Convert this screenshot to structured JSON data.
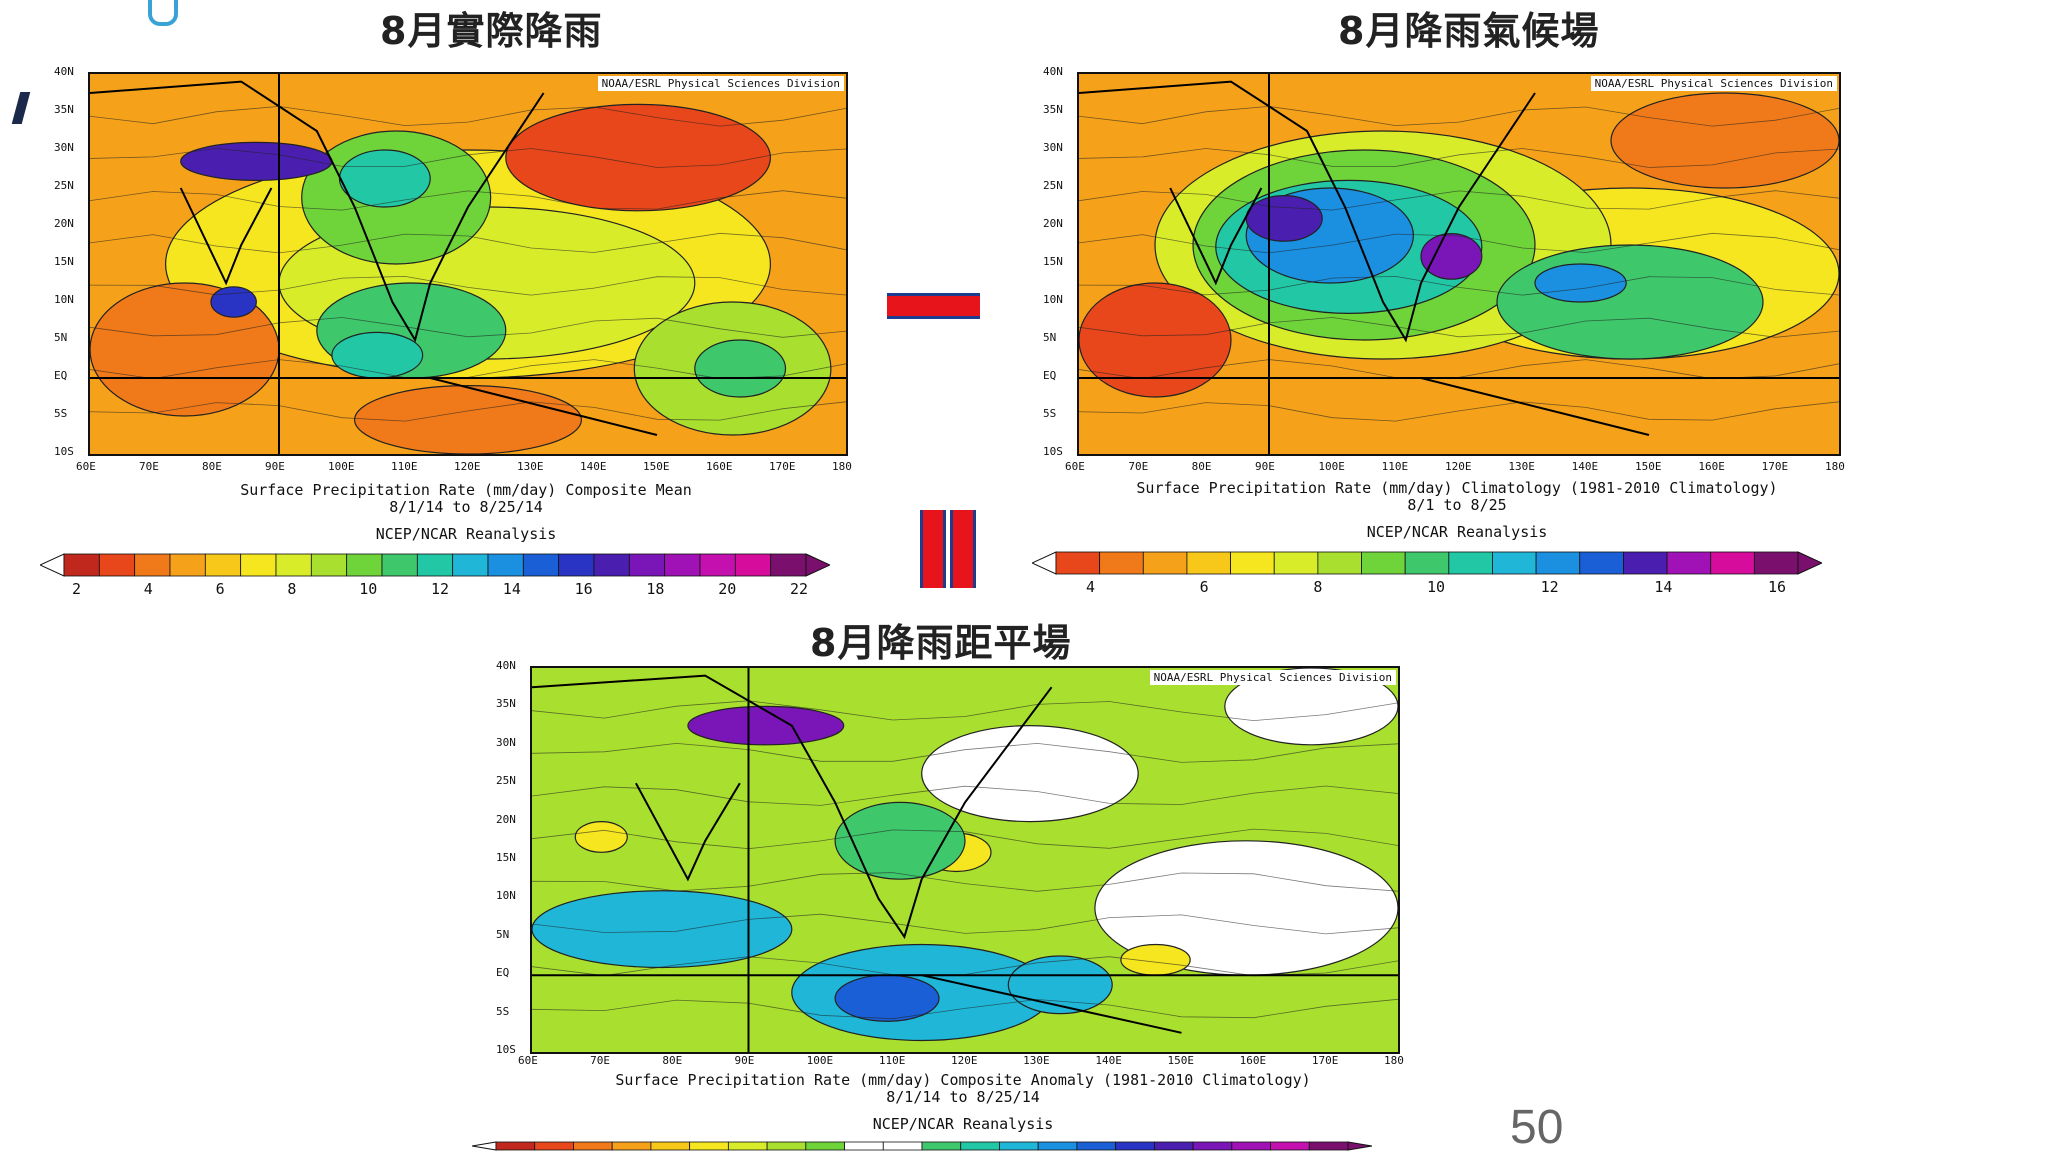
{
  "panels": [
    {
      "title": "8月實際降雨",
      "credit": "NOAA/ESRL Physical Sciences Division",
      "caption_line1": "Surface Precipitation Rate (mm/day) Composite Mean",
      "caption_line2": "8/1/14  to 8/25/14",
      "caption_line3": "NCEP/NCAR Reanalysis",
      "colorbar_labels": [
        "2",
        "4",
        "6",
        "8",
        "10",
        "12",
        "14",
        "16",
        "18",
        "20",
        "22"
      ],
      "colorbar_colors": [
        "#c0281d",
        "#e8471b",
        "#f07a1a",
        "#f5a21a",
        "#f7c81a",
        "#f5e620",
        "#d8ec2a",
        "#a9df2f",
        "#6fd33a",
        "#3ec86b",
        "#22c7a6",
        "#1fb6d8",
        "#1b8fe0",
        "#1a5fd6",
        "#2a34c4",
        "#4a1fb0",
        "#7a16b8",
        "#a012b5",
        "#c410ae",
        "#d60d9c",
        "#7a0f6e"
      ]
    },
    {
      "title": "8月降雨氣候場",
      "credit": "NOAA/ESRL Physical Sciences Division",
      "caption_line1": "Surface Precipitation Rate (mm/day) Climatology (1981-2010 Climatology)",
      "caption_line2": "8/1  to 8/25",
      "caption_line3": "NCEP/NCAR Reanalysis",
      "colorbar_labels": [
        "4",
        "6",
        "8",
        "10",
        "12",
        "14",
        "16"
      ],
      "colorbar_colors": [
        "#e8471b",
        "#f07a1a",
        "#f5a21a",
        "#f7c81a",
        "#f5e620",
        "#d8ec2a",
        "#a9df2f",
        "#6fd33a",
        "#3ec86b",
        "#22c7a6",
        "#1fb6d8",
        "#1b8fe0",
        "#1a5fd6",
        "#4a1fb0",
        "#a012b5",
        "#d60d9c",
        "#7a0f6e"
      ]
    },
    {
      "title": "8月降雨距平場",
      "credit": "NOAA/ESRL Physical Sciences Division",
      "caption_line1": "Surface Precipitation Rate (mm/day) Composite Anomaly (1981-2010 Climatology)",
      "caption_line2": "8/1/14  to 8/25/14",
      "caption_line3": "NCEP/NCAR Reanalysis",
      "colorbar_labels": [],
      "colorbar_colors": [
        "#c0281d",
        "#e8471b",
        "#f07a1a",
        "#f5a21a",
        "#f7c81a",
        "#f5e620",
        "#d8ec2a",
        "#a9df2f",
        "#6fd33a",
        "#ffffff",
        "#ffffff",
        "#3ec86b",
        "#22c7a6",
        "#1fb6d8",
        "#1b8fe0",
        "#1a5fd6",
        "#2a34c4",
        "#4a1fb0",
        "#7a16b8",
        "#a012b5",
        "#c410ae",
        "#7a0f6e"
      ]
    }
  ],
  "lat_labels": [
    "40N",
    "35N",
    "30N",
    "25N",
    "20N",
    "15N",
    "10N",
    "5N",
    "EQ",
    "5S",
    "10S"
  ],
  "lon_labels": [
    "60E",
    "70E",
    "80E",
    "90E",
    "100E",
    "110E",
    "120E",
    "130E",
    "140E",
    "150E",
    "160E",
    "170E",
    "180"
  ],
  "slide_number": "50",
  "colors": {
    "operator_red": "#e8141c",
    "operator_blue": "#1d3c8f"
  }
}
